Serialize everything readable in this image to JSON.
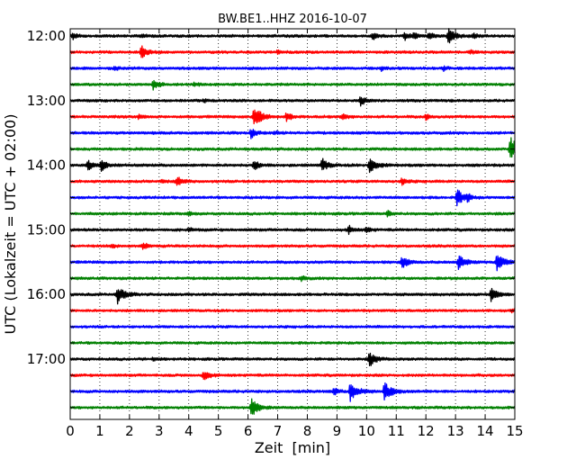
{
  "chart_data": {
    "type": "line",
    "title": "BW.BE1..HHZ 2016-10-07",
    "xlabel": "Zeit  [min]",
    "ylabel": "UTC (Lokalzeit = UTC + 02:00)",
    "xlim": [
      0,
      15
    ],
    "x_ticks": [
      0,
      1,
      2,
      3,
      4,
      5,
      6,
      7,
      8,
      9,
      10,
      11,
      12,
      13,
      14,
      15
    ],
    "x_tick_labels": [
      "0",
      "1",
      "2",
      "3",
      "4",
      "5",
      "6",
      "7",
      "8",
      "9",
      "10",
      "11",
      "12",
      "13",
      "14",
      "15"
    ],
    "grid_x": true,
    "row_minutes": 15,
    "y_tick_labels": [
      "12:00",
      "13:00",
      "14:00",
      "15:00",
      "16:00",
      "17:00"
    ],
    "colors": [
      "#000000",
      "#ff0000",
      "#0000ff",
      "#008000"
    ],
    "traces": [
      {
        "start": "12:00",
        "color": "#000000",
        "noise": 0.22,
        "events": [
          [
            0.1,
            3
          ],
          [
            2.4,
            2
          ],
          [
            10.2,
            4
          ],
          [
            11.3,
            4
          ],
          [
            11.6,
            3
          ],
          [
            12.1,
            4
          ],
          [
            12.75,
            9
          ],
          [
            13.6,
            3
          ]
        ]
      },
      {
        "start": "12:15",
        "color": "#ff0000",
        "noise": 0.18,
        "events": [
          [
            2.4,
            7
          ],
          [
            7.0,
            2
          ],
          [
            13.5,
            2
          ]
        ]
      },
      {
        "start": "12:30",
        "color": "#0000ff",
        "noise": 0.2,
        "events": [
          [
            1.5,
            2
          ],
          [
            10.5,
            2
          ],
          [
            12.6,
            2
          ]
        ]
      },
      {
        "start": "12:45",
        "color": "#008000",
        "noise": 0.18,
        "events": [
          [
            2.8,
            6
          ],
          [
            4.2,
            2
          ]
        ]
      },
      {
        "start": "13:00",
        "color": "#000000",
        "noise": 0.18,
        "events": [
          [
            9.8,
            5
          ],
          [
            4.5,
            2
          ]
        ]
      },
      {
        "start": "13:15",
        "color": "#ff0000",
        "noise": 0.2,
        "events": [
          [
            6.2,
            12
          ],
          [
            7.3,
            5
          ],
          [
            9.2,
            4
          ],
          [
            12.0,
            3
          ],
          [
            2.3,
            2
          ]
        ]
      },
      {
        "start": "13:30",
        "color": "#0000ff",
        "noise": 0.2,
        "events": [
          [
            6.1,
            5
          ],
          [
            6.9,
            2
          ]
        ]
      },
      {
        "start": "13:45",
        "color": "#008000",
        "noise": 0.2,
        "events": [
          [
            14.85,
            14
          ]
        ]
      },
      {
        "start": "14:00",
        "color": "#000000",
        "noise": 0.22,
        "events": [
          [
            0.6,
            5
          ],
          [
            1.05,
            6
          ],
          [
            6.2,
            5
          ],
          [
            8.5,
            7
          ],
          [
            10.1,
            9
          ]
        ]
      },
      {
        "start": "14:15",
        "color": "#ff0000",
        "noise": 0.18,
        "events": [
          [
            3.6,
            6
          ],
          [
            11.2,
            4
          ],
          [
            3.1,
            2
          ]
        ]
      },
      {
        "start": "14:30",
        "color": "#0000ff",
        "noise": 0.18,
        "events": [
          [
            13.05,
            9
          ],
          [
            13.4,
            3
          ]
        ]
      },
      {
        "start": "14:45",
        "color": "#008000",
        "noise": 0.18,
        "events": [
          [
            4.0,
            2
          ],
          [
            10.7,
            3
          ]
        ]
      },
      {
        "start": "15:00",
        "color": "#000000",
        "noise": 0.2,
        "events": [
          [
            9.4,
            4
          ],
          [
            10.0,
            3
          ],
          [
            4.0,
            2
          ]
        ]
      },
      {
        "start": "15:15",
        "color": "#ff0000",
        "noise": 0.18,
        "events": [
          [
            2.45,
            4
          ],
          [
            1.4,
            2
          ]
        ]
      },
      {
        "start": "15:30",
        "color": "#0000ff",
        "noise": 0.2,
        "events": [
          [
            11.2,
            7
          ],
          [
            13.1,
            8
          ],
          [
            14.4,
            10
          ]
        ]
      },
      {
        "start": "15:45",
        "color": "#008000",
        "noise": 0.18,
        "events": [
          [
            7.8,
            3
          ]
        ]
      },
      {
        "start": "16:00",
        "color": "#000000",
        "noise": 0.2,
        "events": [
          [
            1.6,
            10
          ],
          [
            14.2,
            8
          ]
        ]
      },
      {
        "start": "16:15",
        "color": "#ff0000",
        "noise": 0.16,
        "events": [
          [
            14.9,
            2
          ]
        ]
      },
      {
        "start": "16:30",
        "color": "#0000ff",
        "noise": 0.16,
        "events": []
      },
      {
        "start": "16:45",
        "color": "#008000",
        "noise": 0.16,
        "events": []
      },
      {
        "start": "17:00",
        "color": "#000000",
        "noise": 0.18,
        "events": [
          [
            10.1,
            8
          ],
          [
            2.8,
            2
          ]
        ]
      },
      {
        "start": "17:15",
        "color": "#ff0000",
        "noise": 0.18,
        "events": [
          [
            4.5,
            6
          ]
        ]
      },
      {
        "start": "17:30",
        "color": "#0000ff",
        "noise": 0.22,
        "events": [
          [
            8.9,
            4
          ],
          [
            9.45,
            11
          ],
          [
            10.6,
            10
          ]
        ]
      },
      {
        "start": "17:45",
        "color": "#008000",
        "noise": 0.18,
        "events": [
          [
            6.1,
            10
          ]
        ]
      }
    ]
  }
}
